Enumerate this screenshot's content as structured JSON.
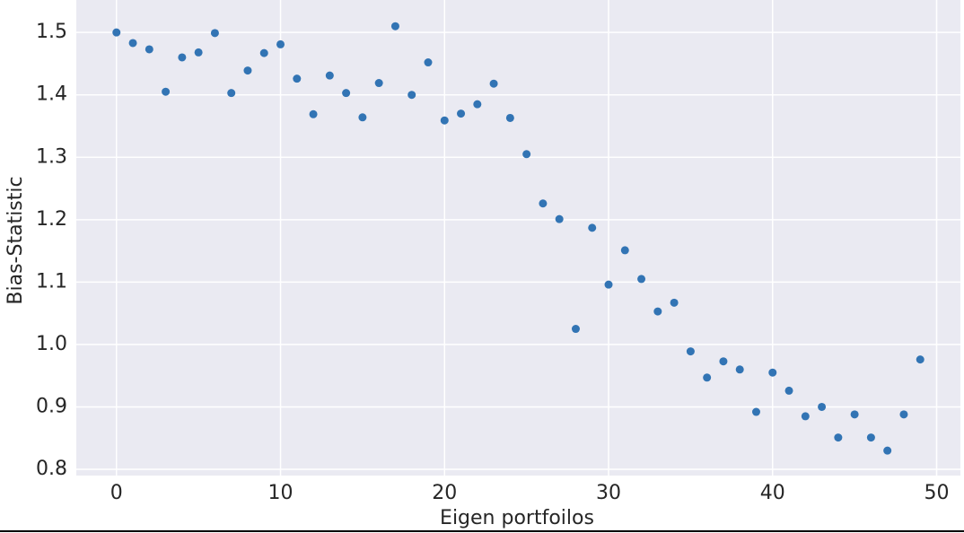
{
  "chart_data": {
    "type": "scatter",
    "xlabel": "Eigen portfoilos",
    "ylabel": "Bias-Statistic",
    "color": "#3274b4",
    "grid": true,
    "x": [
      0,
      1,
      2,
      3,
      4,
      5,
      6,
      7,
      8,
      9,
      10,
      11,
      12,
      13,
      14,
      15,
      16,
      17,
      18,
      19,
      20,
      21,
      22,
      23,
      24,
      25,
      26,
      27,
      28,
      29,
      30,
      31,
      32,
      33,
      34,
      35,
      36,
      37,
      38,
      39,
      40,
      41,
      42,
      43,
      44,
      45,
      46,
      47,
      48,
      49
    ],
    "values": [
      1.5,
      1.483,
      1.473,
      1.405,
      1.46,
      1.468,
      1.499,
      1.403,
      1.439,
      1.467,
      1.481,
      1.426,
      1.369,
      1.431,
      1.403,
      1.364,
      1.419,
      1.51,
      1.4,
      1.452,
      1.359,
      1.37,
      1.385,
      1.418,
      1.363,
      1.305,
      1.226,
      1.201,
      1.025,
      1.187,
      1.096,
      1.151,
      1.105,
      1.053,
      1.067,
      0.989,
      0.947,
      0.973,
      0.96,
      0.892,
      0.955,
      0.926,
      0.885,
      0.9,
      0.851,
      0.888,
      0.851,
      0.83,
      0.888,
      0.976
    ],
    "xlim": [
      -2.45,
      51.45
    ],
    "ylim": [
      0.79,
      1.552
    ],
    "xticks": [
      0,
      10,
      20,
      30,
      40,
      50
    ],
    "yticks": [
      0.8,
      0.9,
      {
        "value": 1,
        "label": "1.0"
      },
      1.1,
      1.2,
      1.3,
      1.4,
      1.5
    ]
  }
}
